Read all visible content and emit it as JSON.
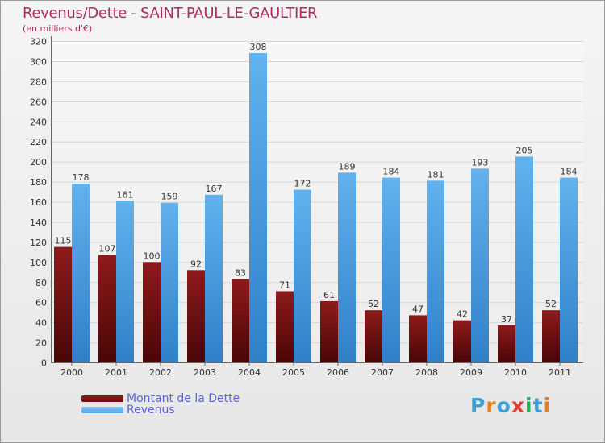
{
  "title": "Revenus/Dette - SAINT-PAUL-LE-GAULTIER",
  "subtitle": "(en milliers d'€)",
  "logo_text": "Proxiti",
  "colors": {
    "title": "#b22a61",
    "dette": "#6b0f10",
    "revenus": "#5aa7e6",
    "legend_text": "#5b64d8",
    "logo": [
      "#3aa0d8",
      "#e67e22",
      "#3aa0d8",
      "#e53935",
      "#27ae60",
      "#3aa0d8",
      "#e67e22"
    ]
  },
  "chart_data": {
    "type": "bar",
    "categories": [
      "2000",
      "2001",
      "2002",
      "2003",
      "2004",
      "2005",
      "2006",
      "2007",
      "2008",
      "2009",
      "2010",
      "2011"
    ],
    "series": [
      {
        "name": "Montant de la Dette",
        "values": [
          115,
          107,
          100,
          92,
          83,
          71,
          61,
          52,
          47,
          42,
          37,
          52
        ]
      },
      {
        "name": "Revenus",
        "values": [
          178,
          161,
          159,
          167,
          308,
          172,
          189,
          184,
          181,
          193,
          205,
          184
        ]
      }
    ],
    "ylim": [
      0,
      320
    ],
    "yticks": [
      0,
      20,
      40,
      60,
      80,
      100,
      120,
      140,
      160,
      180,
      200,
      220,
      240,
      260,
      280,
      300,
      320
    ],
    "grid": true,
    "legend": "bottom-left"
  }
}
